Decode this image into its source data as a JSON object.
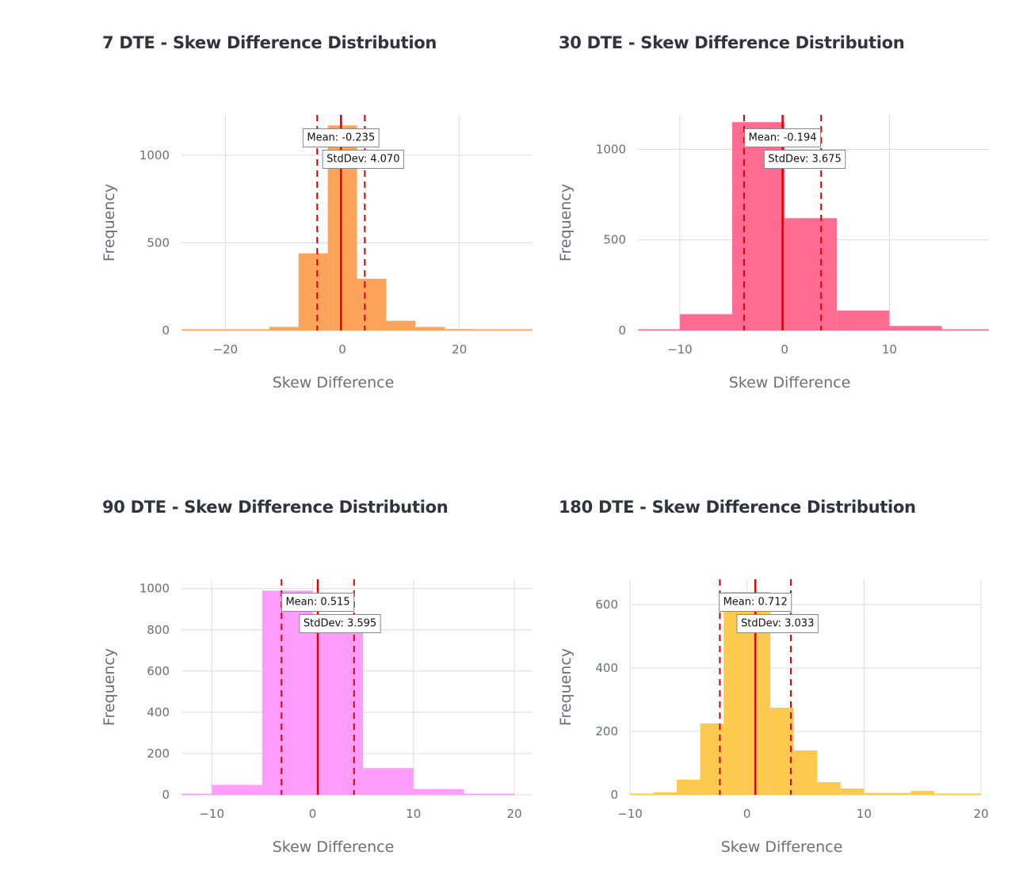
{
  "colors": {
    "grid": "#dcdcdc",
    "line": "#e00000",
    "note_border": "#888888",
    "note_bg": "#ffffff"
  },
  "chart_data": [
    {
      "type": "bar",
      "title": "7 DTE - Skew Difference Distribution",
      "xlabel": "Skew Difference",
      "ylabel": "Frequency",
      "color": "#fea35a",
      "xlim": [
        -27.5,
        32.5
      ],
      "ylim": [
        0,
        1230
      ],
      "xticks": [
        -20,
        0,
        20
      ],
      "xtick_labels": [
        "−20",
        "0",
        "20"
      ],
      "yticks": [
        0,
        500,
        1000
      ],
      "ytick_labels": [
        "0",
        "500",
        "1000"
      ],
      "bin_edges": [
        -27.5,
        -22.5,
        -17.5,
        -12.5,
        -7.5,
        -2.5,
        2.5,
        7.5,
        12.5,
        17.5,
        22.5,
        27.5,
        32.5
      ],
      "values": [
        3,
        3,
        3,
        20,
        440,
        1170,
        295,
        55,
        20,
        8,
        2,
        5
      ],
      "mean": -0.235,
      "std": 4.07,
      "mean_label": "Mean: -0.235",
      "std_label": "StdDev: 4.070"
    },
    {
      "type": "bar",
      "title": "30 DTE - Skew Difference Distribution",
      "xlabel": "Skew Difference",
      "ylabel": "Frequency",
      "color": "#ff6b91",
      "xlim": [
        -14,
        19.5
      ],
      "ylim": [
        0,
        1190
      ],
      "xticks": [
        -10,
        0,
        10
      ],
      "xtick_labels": [
        "−10",
        "0",
        "10"
      ],
      "yticks": [
        0,
        500,
        1000
      ],
      "yticks_labels_note": "",
      "ytick_labels": [
        "0",
        "500",
        "1000"
      ],
      "bin_edges": [
        -14,
        -10,
        -5,
        0,
        5,
        10,
        15,
        19.5
      ],
      "values": [
        3,
        90,
        1150,
        620,
        110,
        25,
        3
      ],
      "mean": -0.194,
      "std": 3.675,
      "mean_label": "Mean: -0.194",
      "std_label": "StdDev: 3.675"
    },
    {
      "type": "bar",
      "title": "90 DTE - Skew Difference Distribution",
      "xlabel": "Skew Difference",
      "ylabel": "Frequency",
      "color": "#ff9cfc",
      "xlim": [
        -13,
        21.8
      ],
      "ylim": [
        0,
        1045
      ],
      "xticks": [
        -10,
        0,
        10,
        20
      ],
      "xtick_labels": [
        "−10",
        "0",
        "10",
        "20"
      ],
      "yticks": [
        0,
        200,
        400,
        600,
        800,
        1000
      ],
      "ytick_labels": [
        "0",
        "200",
        "400",
        "600",
        "800",
        "1000"
      ],
      "bin_edges": [
        -13,
        -10,
        -5,
        0,
        5,
        10,
        15,
        20
      ],
      "values": [
        3,
        48,
        990,
        790,
        130,
        28,
        4
      ],
      "mean": 0.515,
      "std": 3.595,
      "mean_label": "Mean: 0.515",
      "std_label": "StdDev: 3.595"
    },
    {
      "type": "bar",
      "title": "180 DTE - Skew Difference Distribution",
      "xlabel": "Skew Difference",
      "ylabel": "Frequency",
      "color": "#fdc94f",
      "xlim": [
        -10,
        20
      ],
      "ylim": [
        0,
        680
      ],
      "xticks": [
        -10,
        0,
        10,
        20
      ],
      "xtick_labels": [
        "−10",
        "0",
        "10",
        "20"
      ],
      "yticks": [
        0,
        200,
        400,
        600
      ],
      "ytick_labels": [
        "0",
        "200",
        "400",
        "600"
      ],
      "bin_edges": [
        -10,
        -8,
        -6,
        -4,
        -2,
        0,
        2,
        4,
        6,
        8,
        10,
        12,
        14,
        16,
        18,
        20
      ],
      "values": [
        3,
        8,
        48,
        225,
        640,
        640,
        275,
        140,
        40,
        20,
        6,
        6,
        12,
        2,
        4
      ],
      "mean": 0.712,
      "std": 3.033,
      "mean_label": "Mean: 0.712",
      "std_label": "StdDev: 3.033"
    }
  ]
}
